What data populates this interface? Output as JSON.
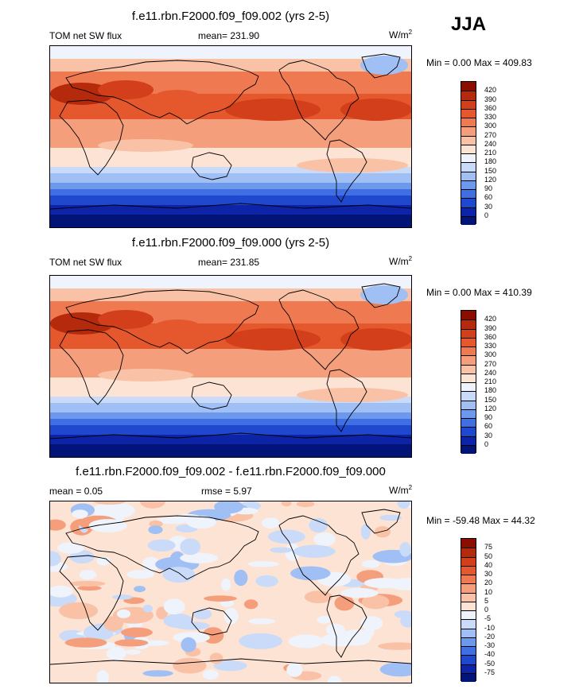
{
  "season": "JJA",
  "panels": [
    {
      "title": "f.e11.rbn.F2000.f09_f09.002 (yrs 2-5)",
      "left_label": "TOM net SW flux",
      "stat_label": "mean= 231.90",
      "units_base": "W/m",
      "units_exp": "2",
      "minmax": "Min =   0.00 Max = 409.83",
      "levels": [
        "420",
        "390",
        "360",
        "330",
        "300",
        "270",
        "240",
        "210",
        "180",
        "150",
        "120",
        "90",
        "60",
        "30",
        "0"
      ],
      "colors": [
        "#8b0d00",
        "#b52a0d",
        "#d23f1a",
        "#e5582e",
        "#ef7a52",
        "#f59e7c",
        "#f9c2a6",
        "#fde3d4",
        "#eef3fc",
        "#c9dbf8",
        "#a0bff4",
        "#6d99ec",
        "#3f6fe2",
        "#1f48cf",
        "#0d23a8",
        "#021478"
      ]
    },
    {
      "title": "f.e11.rbn.F2000.f09_f09.000 (yrs 2-5)",
      "left_label": "TOM net SW flux",
      "stat_label": "mean= 231.85",
      "units_base": "W/m",
      "units_exp": "2",
      "minmax": "Min =   0.00 Max = 410.39",
      "levels": [
        "420",
        "390",
        "360",
        "330",
        "300",
        "270",
        "240",
        "210",
        "180",
        "150",
        "120",
        "90",
        "60",
        "30",
        "0"
      ],
      "colors": [
        "#8b0d00",
        "#b52a0d",
        "#d23f1a",
        "#e5582e",
        "#ef7a52",
        "#f59e7c",
        "#f9c2a6",
        "#fde3d4",
        "#eef3fc",
        "#c9dbf8",
        "#a0bff4",
        "#6d99ec",
        "#3f6fe2",
        "#1f48cf",
        "#0d23a8",
        "#021478"
      ]
    },
    {
      "title": "f.e11.rbn.F2000.f09_f09.002 - f.e11.rbn.F2000.f09_f09.000",
      "left_label": "mean =   0.05",
      "stat_label": "rmse =   5.97",
      "units_base": "W/m",
      "units_exp": "2",
      "minmax": "Min = -59.48 Max =  44.32",
      "levels": [
        "75",
        "50",
        "40",
        "30",
        "20",
        "10",
        "5",
        "0",
        "-5",
        "-10",
        "-20",
        "-30",
        "-40",
        "-50",
        "-75"
      ],
      "colors": [
        "#8b0d00",
        "#b52a0d",
        "#d23f1a",
        "#e5582e",
        "#ef7a52",
        "#f59e7c",
        "#f9c2a6",
        "#fde3d4",
        "#eef3fc",
        "#c9dbf8",
        "#a0bff4",
        "#6d99ec",
        "#3f6fe2",
        "#1f48cf",
        "#0d23a8",
        "#021478"
      ]
    }
  ]
}
